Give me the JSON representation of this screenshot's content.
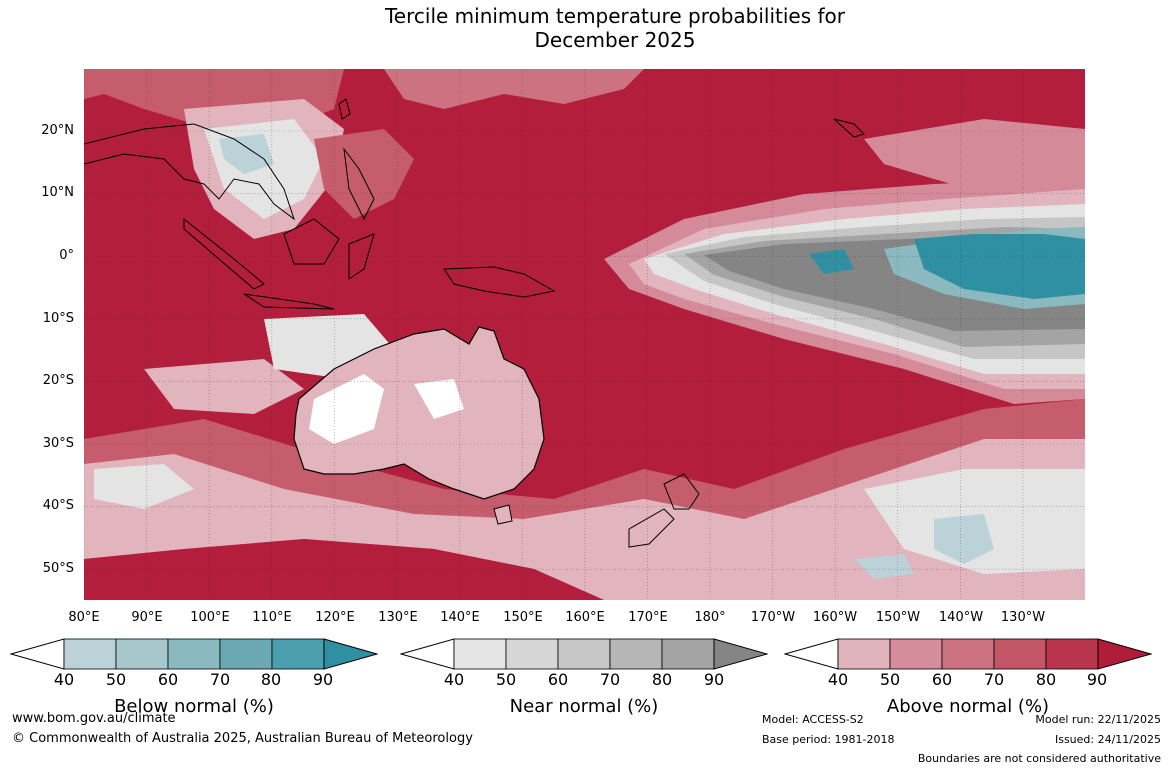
{
  "title_line1": "Tercile minimum temperature probabilities for",
  "title_line2": "December 2025",
  "lat_labels": [
    "20°N",
    "10°N",
    "0°",
    "10°S",
    "20°S",
    "30°S",
    "40°S",
    "50°S"
  ],
  "lon_labels": [
    "80°E",
    "90°E",
    "100°E",
    "110°E",
    "120°E",
    "130°E",
    "140°E",
    "150°E",
    "160°E",
    "170°E",
    "180°",
    "170°W",
    "160°W",
    "150°W",
    "140°W",
    "130°W"
  ],
  "colorbars": [
    {
      "label": "Below normal (%)",
      "ticks": [
        "40",
        "50",
        "60",
        "70",
        "80",
        "90"
      ],
      "colors": [
        "#ffffff",
        "#bad2d8",
        "#a6c8cd",
        "#8bb9c0",
        "#6aa9b3",
        "#4a9eae",
        "#2f8fa3"
      ]
    },
    {
      "label": "Near normal (%)",
      "ticks": [
        "40",
        "50",
        "60",
        "70",
        "80",
        "90"
      ],
      "colors": [
        "#ffffff",
        "#e5e5e5",
        "#d6d6d6",
        "#c6c6c6",
        "#b6b6b6",
        "#a4a4a4",
        "#858585"
      ]
    },
    {
      "label": "Above normal (%)",
      "ticks": [
        "40",
        "50",
        "60",
        "70",
        "80",
        "90"
      ],
      "colors": [
        "#ffffff",
        "#e0b3bd",
        "#d68d9b",
        "#cc7280",
        "#c35666",
        "#b9344d",
        "#b01d3a"
      ]
    }
  ],
  "map_colors": {
    "above_90": "#b21e3b",
    "above_80": "#bb3a52",
    "above_70": "#c65d6c",
    "above_60": "#d48a98",
    "above_50": "#e1b4be",
    "near_90": "#858585",
    "near_80": "#a4a4a4",
    "near_60": "#c6c6c6",
    "near_50": "#e4e4e4",
    "below_90": "#2f8fa3",
    "below_70": "#8bb9c0",
    "below_50": "#bad2d8"
  },
  "footer": {
    "website": "www.bom.gov.au/climate",
    "copyright": "© Commonwealth of Australia 2025, Australian Bureau of Meteorology",
    "model": "Model: ACCESS-S2",
    "base_period": "Base period: 1981-2018",
    "model_run": "Model run: 22/11/2025",
    "issued": "Issued: 24/11/2025",
    "disclaimer": "Boundaries are not considered authoritative"
  }
}
